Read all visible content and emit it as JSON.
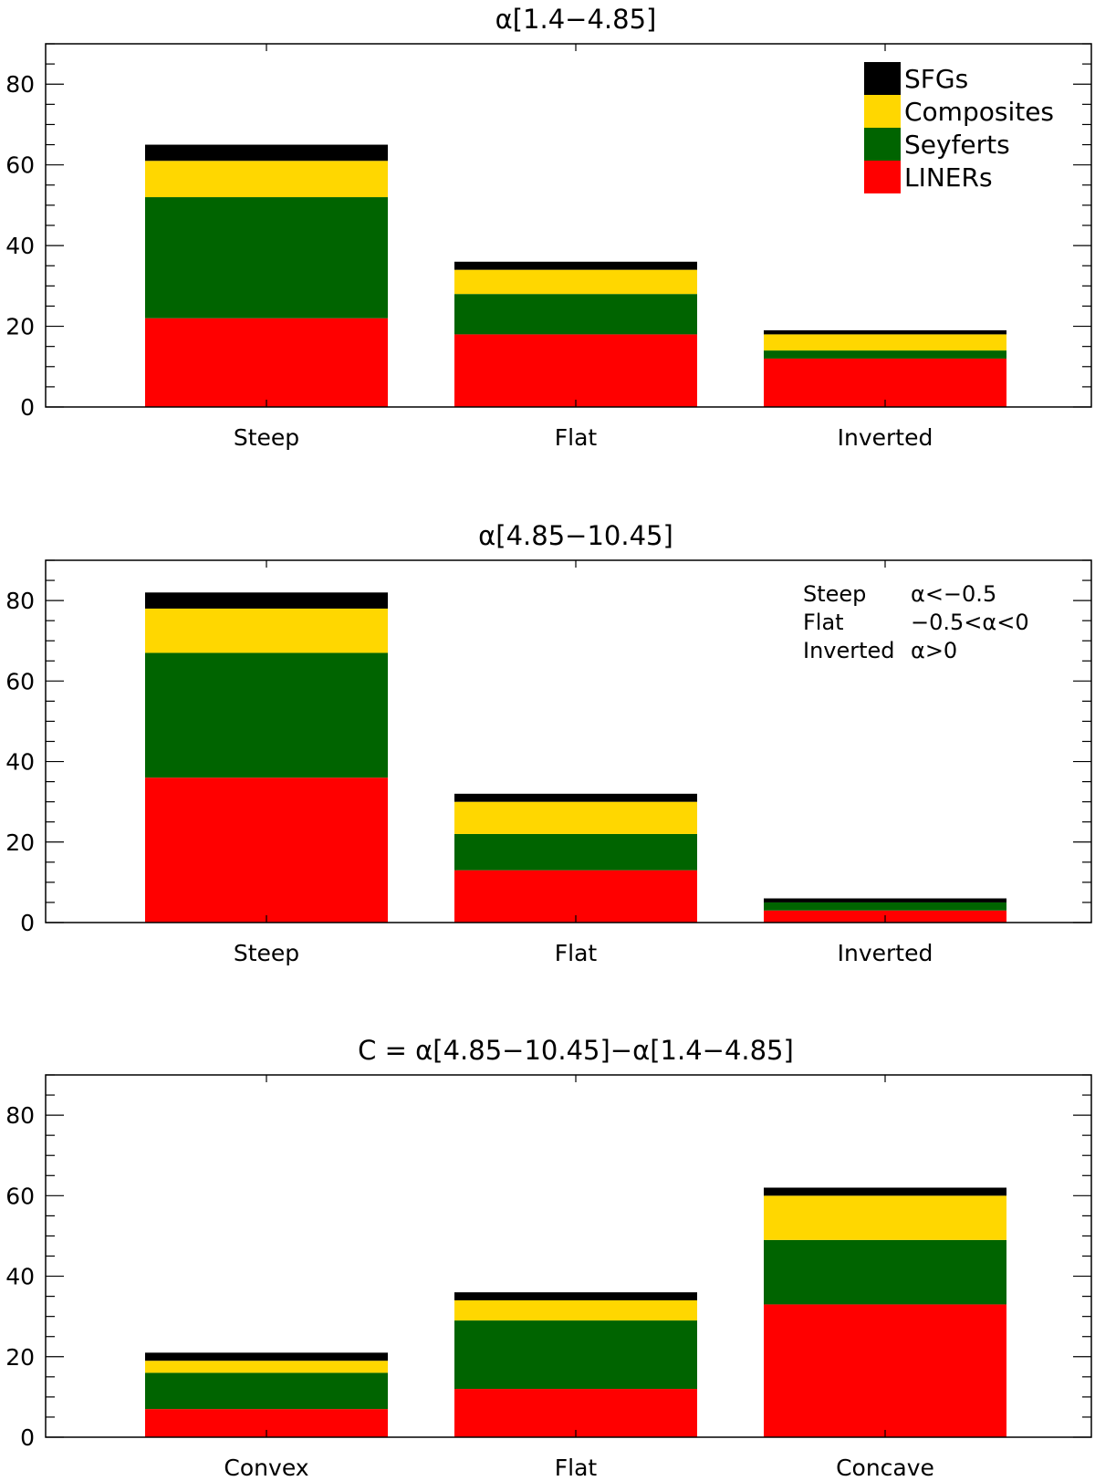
{
  "colors": {
    "SFGs": "#000000",
    "Composites": "#ffd700",
    "Seyferts": "#006400",
    "LINERs": "#ff0000",
    "axis": "#000000",
    "background": "#ffffff"
  },
  "legend": {
    "placement": "top-right of first panel",
    "entries": [
      "SFGs",
      "Composites",
      "Seyferts",
      "LINERs"
    ]
  },
  "note": {
    "rows": [
      {
        "name": "Steep",
        "cond": "α<−0.5"
      },
      {
        "name": "Flat",
        "cond": "−0.5<α<0"
      },
      {
        "name": "Inverted",
        "cond": "α>0"
      }
    ]
  },
  "chart_data": [
    {
      "type": "bar",
      "stacked": true,
      "title": "α[1.4−4.85]",
      "categories": [
        "Steep",
        "Flat",
        "Inverted"
      ],
      "ylim": [
        0,
        90
      ],
      "yticks": [
        0,
        20,
        40,
        60,
        80
      ],
      "grid": false,
      "series": [
        {
          "name": "LINERs",
          "values": [
            22,
            18,
            12
          ]
        },
        {
          "name": "Seyferts",
          "values": [
            30,
            10,
            2
          ]
        },
        {
          "name": "Composites",
          "values": [
            9,
            6,
            4
          ]
        },
        {
          "name": "SFGs",
          "values": [
            4,
            2,
            1
          ]
        }
      ]
    },
    {
      "type": "bar",
      "stacked": true,
      "title": "α[4.85−10.45]",
      "categories": [
        "Steep",
        "Flat",
        "Inverted"
      ],
      "ylim": [
        0,
        90
      ],
      "yticks": [
        0,
        20,
        40,
        60,
        80
      ],
      "grid": false,
      "series": [
        {
          "name": "LINERs",
          "values": [
            36,
            13,
            3
          ]
        },
        {
          "name": "Seyferts",
          "values": [
            31,
            9,
            2
          ]
        },
        {
          "name": "Composites",
          "values": [
            11,
            8,
            0
          ]
        },
        {
          "name": "SFGs",
          "values": [
            4,
            2,
            1
          ]
        }
      ]
    },
    {
      "type": "bar",
      "stacked": true,
      "title": "C = α[4.85−10.45]−α[1.4−4.85]",
      "categories": [
        "Convex",
        "Flat",
        "Concave"
      ],
      "ylim": [
        0,
        90
      ],
      "yticks": [
        0,
        20,
        40,
        60,
        80
      ],
      "grid": false,
      "series": [
        {
          "name": "LINERs",
          "values": [
            7,
            12,
            33
          ]
        },
        {
          "name": "Seyferts",
          "values": [
            9,
            17,
            16
          ]
        },
        {
          "name": "Composites",
          "values": [
            3,
            5,
            11
          ]
        },
        {
          "name": "SFGs",
          "values": [
            2,
            2,
            2
          ]
        }
      ]
    }
  ]
}
